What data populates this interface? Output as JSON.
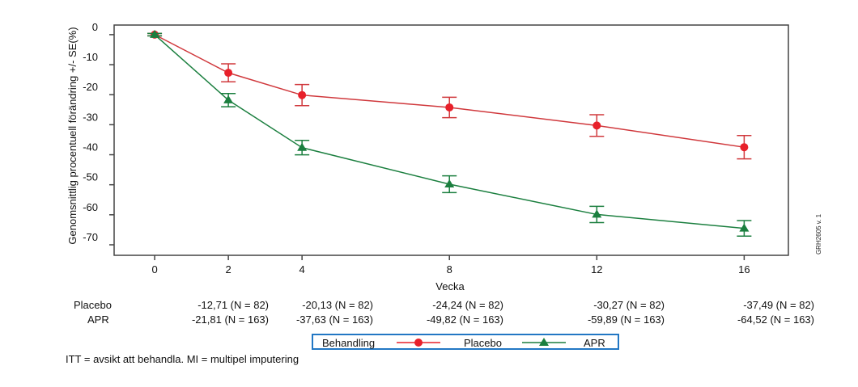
{
  "chart_data": {
    "type": "line",
    "title": "",
    "xlabel": "Vecka",
    "ylabel": "Genomsnittlig procentuell förändring +/- SE(%)",
    "x": [
      0,
      2,
      4,
      8,
      12,
      16
    ],
    "x_tick_labels": [
      "0",
      "2",
      "4",
      "8",
      "12",
      "16"
    ],
    "y_ticks": [
      0,
      -10,
      -20,
      -30,
      -40,
      -50,
      -60,
      -70
    ],
    "y_tick_labels": [
      "0",
      "-10",
      "-20",
      "-30",
      "-40",
      "-50",
      "-60",
      "-70"
    ],
    "xlim": [
      -1.1,
      17.2
    ],
    "ylim": [
      -73.5,
      3.2
    ],
    "grid": false,
    "error_bars": "SE",
    "series": [
      {
        "name": "Placebo",
        "color": "#e8202a",
        "line_color": "#d0383c",
        "marker": "circle",
        "values": [
          0,
          -12.71,
          -20.13,
          -24.24,
          -30.27,
          -37.49
        ],
        "se": [
          0.4,
          3.0,
          3.5,
          3.4,
          3.6,
          3.9
        ]
      },
      {
        "name": "APR",
        "color": "#1b7f3f",
        "line_color": "#1b7f3f",
        "marker": "triangle",
        "values": [
          0,
          -21.81,
          -37.63,
          -49.82,
          -59.89,
          -64.52
        ],
        "se": [
          0.4,
          2.2,
          2.4,
          2.8,
          2.7,
          2.6
        ]
      }
    ],
    "legend": {
      "title": "Behandling",
      "entries": [
        "Placebo",
        "APR"
      ],
      "placement": "bottom-center"
    },
    "side_note": "GRH2605 v. 1"
  },
  "table": {
    "rows": [
      {
        "label": "Placebo",
        "cells": [
          "-12,71 (N = 82)",
          "-20,13 (N = 82)",
          "-24,24 (N = 82)",
          "-30,27 (N = 82)",
          "-37,49 (N = 82)"
        ]
      },
      {
        "label": "APR",
        "cells": [
          "-21,81 (N = 163)",
          "-37,63 (N = 163)",
          "-49,82 (N = 163)",
          "-59,89 (N = 163)",
          "-64,52 (N = 163)"
        ]
      }
    ]
  },
  "footnote": "ITT = avsikt att behandla. MI = multipel imputering"
}
